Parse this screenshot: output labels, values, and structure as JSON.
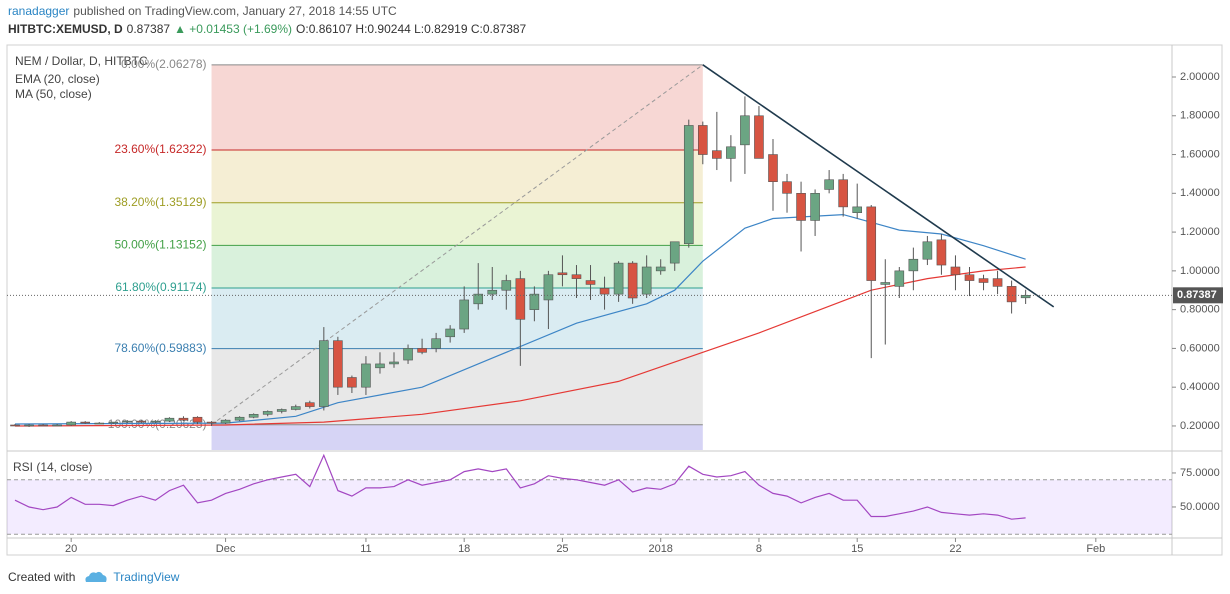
{
  "header": {
    "author": "ranadagger",
    "published": "published on TradingView.com, January 27, 2018 14:55 UTC",
    "symbol": "HITBTC:XEMUSD, D",
    "last": "0.87387",
    "change": "▲ +0.01453 (+1.69%)",
    "ohlc": "O:0.86107 H:0.90244 L:0.82919 C:0.87387"
  },
  "chart_data": [
    {
      "type": "candlestick",
      "title": "NEM / Dollar, D, HITBTC",
      "x": [
        "2017-11-16",
        "2017-11-17",
        "2017-11-18",
        "2017-11-19",
        "2017-11-20",
        "2017-11-21",
        "2017-11-22",
        "2017-11-23",
        "2017-11-24",
        "2017-11-25",
        "2017-11-26",
        "2017-11-27",
        "2017-11-28",
        "2017-11-29",
        "2017-11-30",
        "2017-12-01",
        "2017-12-02",
        "2017-12-03",
        "2017-12-04",
        "2017-12-05",
        "2017-12-06",
        "2017-12-07",
        "2017-12-08",
        "2017-12-09",
        "2017-12-10",
        "2017-12-11",
        "2017-12-12",
        "2017-12-13",
        "2017-12-14",
        "2017-12-15",
        "2017-12-16",
        "2017-12-17",
        "2017-12-18",
        "2017-12-19",
        "2017-12-20",
        "2017-12-21",
        "2017-12-22",
        "2017-12-23",
        "2017-12-24",
        "2017-12-25",
        "2017-12-26",
        "2017-12-27",
        "2017-12-28",
        "2017-12-29",
        "2017-12-30",
        "2017-12-31",
        "2018-01-01",
        "2018-01-02",
        "2018-01-03",
        "2018-01-04",
        "2018-01-05",
        "2018-01-06",
        "2018-01-07",
        "2018-01-08",
        "2018-01-09",
        "2018-01-10",
        "2018-01-11",
        "2018-01-12",
        "2018-01-13",
        "2018-01-14",
        "2018-01-15",
        "2018-01-16",
        "2018-01-17",
        "2018-01-18",
        "2018-01-19",
        "2018-01-20",
        "2018-01-21",
        "2018-01-22",
        "2018-01-23",
        "2018-01-24",
        "2018-01-25",
        "2018-01-26",
        "2018-01-27"
      ],
      "open": [
        0.205,
        0.2,
        0.205,
        0.2,
        0.205,
        0.22,
        0.215,
        0.215,
        0.22,
        0.225,
        0.22,
        0.225,
        0.24,
        0.245,
        0.22,
        0.215,
        0.23,
        0.245,
        0.26,
        0.275,
        0.285,
        0.32,
        0.3,
        0.64,
        0.45,
        0.4,
        0.5,
        0.52,
        0.54,
        0.6,
        0.6,
        0.66,
        0.7,
        0.83,
        0.88,
        0.9,
        0.96,
        0.8,
        0.85,
        0.99,
        0.98,
        0.95,
        0.91,
        0.88,
        1.04,
        0.88,
        1.0,
        1.04,
        1.14,
        1.75,
        1.62,
        1.58,
        1.65,
        1.8,
        1.6,
        1.46,
        1.4,
        1.26,
        1.42,
        1.47,
        1.3,
        1.33,
        0.93,
        0.92,
        1.0,
        1.06,
        1.16,
        1.02,
        0.98,
        0.96,
        0.96,
        0.92,
        0.86107
      ],
      "high": [
        0.21,
        0.21,
        0.21,
        0.21,
        0.225,
        0.225,
        0.22,
        0.22,
        0.23,
        0.23,
        0.23,
        0.245,
        0.25,
        0.25,
        0.225,
        0.235,
        0.25,
        0.265,
        0.28,
        0.29,
        0.31,
        0.33,
        0.71,
        0.66,
        0.46,
        0.56,
        0.58,
        0.58,
        0.62,
        0.65,
        0.68,
        0.72,
        0.92,
        1.04,
        1.02,
        0.98,
        1.0,
        0.92,
        1.0,
        1.08,
        1.03,
        1.03,
        0.97,
        1.05,
        1.05,
        1.08,
        1.06,
        1.15,
        1.78,
        1.77,
        1.82,
        1.7,
        1.9,
        1.85,
        1.68,
        1.5,
        1.46,
        1.42,
        1.52,
        1.5,
        1.45,
        1.34,
        1.06,
        1.02,
        1.12,
        1.18,
        1.19,
        1.08,
        1.02,
        0.98,
        1.0,
        0.95,
        0.90244
      ],
      "low": [
        0.2,
        0.195,
        0.2,
        0.2,
        0.2,
        0.21,
        0.21,
        0.21,
        0.215,
        0.215,
        0.215,
        0.22,
        0.225,
        0.21,
        0.2,
        0.21,
        0.225,
        0.24,
        0.25,
        0.265,
        0.28,
        0.29,
        0.28,
        0.36,
        0.37,
        0.36,
        0.47,
        0.5,
        0.52,
        0.57,
        0.58,
        0.63,
        0.68,
        0.8,
        0.85,
        0.8,
        0.51,
        0.74,
        0.7,
        0.92,
        0.86,
        0.85,
        0.8,
        0.84,
        0.83,
        0.86,
        0.98,
        1.0,
        1.12,
        1.55,
        1.52,
        1.46,
        1.5,
        1.58,
        1.31,
        1.3,
        1.1,
        1.18,
        1.4,
        1.28,
        1.27,
        0.55,
        0.62,
        0.86,
        0.9,
        1.03,
        0.98,
        0.9,
        0.87,
        0.9,
        0.88,
        0.78,
        0.82919
      ],
      "close": [
        0.2,
        0.205,
        0.2,
        0.205,
        0.22,
        0.215,
        0.215,
        0.22,
        0.225,
        0.22,
        0.225,
        0.24,
        0.23,
        0.22,
        0.215,
        0.23,
        0.245,
        0.26,
        0.275,
        0.285,
        0.3,
        0.3,
        0.64,
        0.4,
        0.4,
        0.52,
        0.52,
        0.53,
        0.6,
        0.58,
        0.65,
        0.7,
        0.85,
        0.88,
        0.9,
        0.95,
        0.75,
        0.88,
        0.98,
        0.98,
        0.96,
        0.93,
        0.88,
        1.04,
        0.86,
        1.02,
        1.02,
        1.15,
        1.75,
        1.6,
        1.58,
        1.64,
        1.8,
        1.58,
        1.46,
        1.4,
        1.26,
        1.4,
        1.47,
        1.33,
        1.33,
        0.95,
        0.94,
        1.0,
        1.06,
        1.15,
        1.03,
        0.98,
        0.95,
        0.94,
        0.92,
        0.84,
        0.87387
      ],
      "up_color": "#6ba583",
      "down_color": "#d75442",
      "series": [
        {
          "name": "EMA (20, close)",
          "color": "#3d85c6",
          "x": [
            "2017-11-16",
            "2017-12-01",
            "2017-12-06",
            "2017-12-09",
            "2017-12-15",
            "2017-12-20",
            "2017-12-26",
            "2017-12-31",
            "2018-01-02",
            "2018-01-04",
            "2018-01-07",
            "2018-01-09",
            "2018-01-14",
            "2018-01-18",
            "2018-01-21",
            "2018-01-24",
            "2018-01-27"
          ],
          "values": [
            0.21,
            0.215,
            0.25,
            0.32,
            0.4,
            0.55,
            0.73,
            0.83,
            0.9,
            1.05,
            1.22,
            1.27,
            1.29,
            1.21,
            1.19,
            1.13,
            1.06
          ]
        },
        {
          "name": "MA (50, close)",
          "color": "#e53935",
          "x": [
            "2017-11-16",
            "2017-12-01",
            "2017-12-08",
            "2017-12-15",
            "2017-12-22",
            "2017-12-29",
            "2018-01-04",
            "2018-01-08",
            "2018-01-12",
            "2018-01-16",
            "2018-01-20",
            "2018-01-24",
            "2018-01-27"
          ],
          "values": [
            0.2,
            0.205,
            0.22,
            0.26,
            0.33,
            0.43,
            0.58,
            0.68,
            0.79,
            0.9,
            0.96,
            1.0,
            1.02
          ]
        }
      ],
      "fib": {
        "start": "2017-11-30",
        "end": "2018-01-04",
        "levels": [
          {
            "value": 2.06278,
            "label": "0.00%(2.06278)"
          },
          {
            "value": 1.62322,
            "label": "23.60%(1.62322)"
          },
          {
            "value": 1.35129,
            "label": "38.20%(1.35129)"
          },
          {
            "value": 1.13152,
            "label": "50.00%(1.13152)"
          },
          {
            "value": 0.91174,
            "label": "61.80%(0.91174)"
          },
          {
            "value": 0.59883,
            "label": "78.60%(0.59883)"
          },
          {
            "value": 0.20625,
            "label": "100.00%(0.20625)"
          }
        ],
        "colors": [
          "#888888",
          "#c62828",
          "#9e9d24",
          "#43a047",
          "#2e9f8f",
          "#3b7fb0",
          "#888888"
        ],
        "band_colors": [
          "#f6d0cc",
          "#f3ebcd",
          "#e6f2cd",
          "#d2efd6",
          "#d3e9f0",
          "#e4e4e4",
          "#cfcdf3"
        ]
      },
      "trendline": {
        "x": [
          "2018-01-04",
          "2018-01-29"
        ],
        "values": [
          2.06278,
          0.814
        ],
        "color": "#1f3a4d"
      },
      "last": 0.87387,
      "xlim": [
        "2017-11-15",
        "2018-02-06"
      ],
      "ylim": [
        0.076,
        2.165
      ],
      "yticks": [
        {
          "value": 0.2,
          "label": "0.20000"
        },
        {
          "value": 0.4,
          "label": "0.40000"
        },
        {
          "value": 0.6,
          "label": "0.60000"
        },
        {
          "value": 0.8,
          "label": "0.80000"
        },
        {
          "value": 1.0,
          "label": "1.00000"
        },
        {
          "value": 1.2,
          "label": "1.20000"
        },
        {
          "value": 1.4,
          "label": "1.40000"
        },
        {
          "value": 1.6,
          "label": "1.60000"
        },
        {
          "value": 1.8,
          "label": "1.80000"
        },
        {
          "value": 2.0,
          "label": "2.00000"
        }
      ]
    },
    {
      "type": "line",
      "title": "RSI (14, close)",
      "x": [
        "2017-11-16",
        "2017-11-17",
        "2017-11-18",
        "2017-11-19",
        "2017-11-20",
        "2017-11-21",
        "2017-11-22",
        "2017-11-23",
        "2017-11-24",
        "2017-11-25",
        "2017-11-26",
        "2017-11-27",
        "2017-11-28",
        "2017-11-29",
        "2017-11-30",
        "2017-12-01",
        "2017-12-02",
        "2017-12-03",
        "2017-12-04",
        "2017-12-05",
        "2017-12-06",
        "2017-12-07",
        "2017-12-08",
        "2017-12-09",
        "2017-12-10",
        "2017-12-11",
        "2017-12-12",
        "2017-12-13",
        "2017-12-14",
        "2017-12-15",
        "2017-12-16",
        "2017-12-17",
        "2017-12-18",
        "2017-12-19",
        "2017-12-20",
        "2017-12-21",
        "2017-12-22",
        "2017-12-23",
        "2017-12-24",
        "2017-12-25",
        "2017-12-26",
        "2017-12-27",
        "2017-12-28",
        "2017-12-29",
        "2017-12-30",
        "2017-12-31",
        "2018-01-01",
        "2018-01-02",
        "2018-01-03",
        "2018-01-04",
        "2018-01-05",
        "2018-01-06",
        "2018-01-07",
        "2018-01-08",
        "2018-01-09",
        "2018-01-10",
        "2018-01-11",
        "2018-01-12",
        "2018-01-13",
        "2018-01-14",
        "2018-01-15",
        "2018-01-16",
        "2018-01-17",
        "2018-01-18",
        "2018-01-19",
        "2018-01-20",
        "2018-01-21",
        "2018-01-22",
        "2018-01-23",
        "2018-01-24",
        "2018-01-25",
        "2018-01-26",
        "2018-01-27"
      ],
      "series": [
        {
          "name": "RSI (14, close)",
          "color": "#a347c2",
          "values": [
            55,
            50,
            48,
            50,
            57,
            52,
            52,
            51,
            55,
            58,
            55,
            62,
            66,
            53,
            55,
            60,
            63,
            67,
            70,
            72,
            74,
            65,
            88,
            62,
            58,
            64,
            64,
            65,
            70,
            66,
            68,
            70,
            76,
            78,
            76,
            78,
            64,
            67,
            73,
            71,
            70,
            68,
            66,
            70,
            61,
            64,
            63,
            67,
            80,
            74,
            72,
            73,
            76,
            66,
            60,
            58,
            53,
            57,
            60,
            55,
            55,
            43,
            43,
            45,
            47,
            50,
            46,
            45,
            44,
            45,
            44,
            41,
            42
          ]
        }
      ],
      "levels": [
        70,
        30
      ],
      "xlim": [
        "2017-11-15",
        "2018-02-06"
      ],
      "ylim": [
        27.2,
        90.4
      ],
      "yticks": [
        {
          "value": 50,
          "label": "50.0000"
        },
        {
          "value": 75,
          "label": "75.0000"
        }
      ],
      "xticks": [
        {
          "value": "2017-11-20",
          "label": "20"
        },
        {
          "value": "2017-12-01",
          "label": "Dec"
        },
        {
          "value": "2017-12-11",
          "label": "11"
        },
        {
          "value": "2017-12-18",
          "label": "18"
        },
        {
          "value": "2017-12-25",
          "label": "25"
        },
        {
          "value": "2018-01-01",
          "label": "2018"
        },
        {
          "value": "2018-01-08",
          "label": "8"
        },
        {
          "value": "2018-01-15",
          "label": "15"
        },
        {
          "value": "2018-01-22",
          "label": "22"
        },
        {
          "value": "2018-02-01",
          "label": "Feb"
        }
      ]
    }
  ],
  "footer": {
    "created": "Created with",
    "brand": "TradingView"
  }
}
